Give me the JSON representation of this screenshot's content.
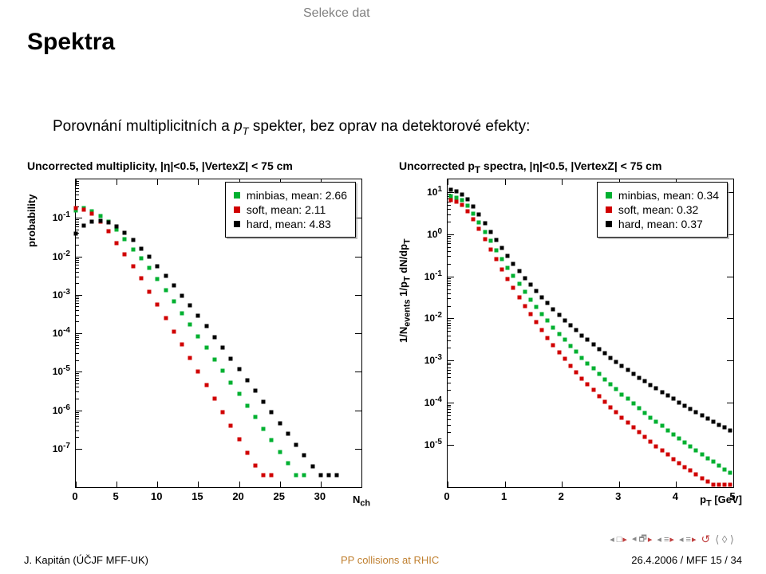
{
  "section": "Selekce dat",
  "title": "Spektra",
  "subtitle_pre": "Porovnání multiplicitních a ",
  "subtitle_pt": "p",
  "subtitle_ptT": "T",
  "subtitle_post": " spekter, bez oprav na detektorové efekty:",
  "footer": {
    "left": "J. Kapitán (ÚČJF MFF-UK)",
    "mid": "PP collisions at RHIC",
    "right": "26.4.2006 / MFF       15 / 34"
  },
  "chart_left": {
    "title": "Uncorrected multiplicity, |η|<0.5, |VertexZ| < 75 cm",
    "ylabel": "probability",
    "xlabel_html": "N<sub>ch</sub>",
    "xlim": [
      0,
      35
    ],
    "xticks": [
      0,
      5,
      10,
      15,
      20,
      25,
      30
    ],
    "ylim_log": [
      -8,
      0
    ],
    "yticks_exp": [
      -7,
      -6,
      -5,
      -4,
      -3,
      -2,
      -1
    ],
    "legend": [
      {
        "label": "minbias, mean: 2.66",
        "color": "#00b030"
      },
      {
        "label": "soft, mean: 2.11",
        "color": "#d00000"
      },
      {
        "label": "hard, mean: 4.83",
        "color": "#000000"
      }
    ],
    "series": {
      "minbias": {
        "color": "#00b030",
        "x": [
          0,
          1,
          2,
          3,
          4,
          5,
          6,
          7,
          8,
          9,
          10,
          11,
          12,
          13,
          14,
          15,
          16,
          17,
          18,
          19,
          20,
          21,
          22,
          23,
          24,
          25,
          26,
          27,
          28
        ],
        "logy": [
          -0.8,
          -0.75,
          -0.82,
          -0.95,
          -1.1,
          -1.3,
          -1.55,
          -1.82,
          -2.05,
          -2.3,
          -2.6,
          -2.88,
          -3.18,
          -3.48,
          -3.78,
          -4.08,
          -4.38,
          -4.68,
          -4.98,
          -5.28,
          -5.58,
          -5.88,
          -6.18,
          -6.48,
          -6.78,
          -7.08,
          -7.38,
          -7.68,
          -7.68
        ]
      },
      "soft": {
        "color": "#d00000",
        "x": [
          0,
          1,
          2,
          3,
          4,
          5,
          6,
          7,
          8,
          9,
          10,
          11,
          12,
          13,
          14,
          15,
          16,
          17,
          18,
          19,
          20,
          21,
          22,
          23,
          24
        ],
        "logy": [
          -0.75,
          -0.78,
          -0.9,
          -1.1,
          -1.35,
          -1.65,
          -1.95,
          -2.25,
          -2.58,
          -2.92,
          -3.25,
          -3.6,
          -3.95,
          -4.3,
          -4.65,
          -5.0,
          -5.35,
          -5.7,
          -6.05,
          -6.4,
          -6.75,
          -7.1,
          -7.45,
          -7.68,
          -7.68
        ]
      },
      "hard": {
        "color": "#000000",
        "x": [
          0,
          1,
          2,
          3,
          4,
          5,
          6,
          7,
          8,
          9,
          10,
          11,
          12,
          13,
          14,
          15,
          16,
          17,
          18,
          19,
          20,
          21,
          22,
          23,
          24,
          25,
          26,
          27,
          28,
          29,
          30,
          31,
          32
        ],
        "logy": [
          -1.4,
          -1.2,
          -1.1,
          -1.08,
          -1.12,
          -1.22,
          -1.38,
          -1.58,
          -1.8,
          -2.02,
          -2.25,
          -2.5,
          -2.76,
          -3.02,
          -3.28,
          -3.55,
          -3.82,
          -4.1,
          -4.38,
          -4.66,
          -4.94,
          -5.22,
          -5.5,
          -5.78,
          -6.06,
          -6.34,
          -6.62,
          -6.9,
          -7.18,
          -7.46,
          -7.68,
          -7.68,
          -7.68
        ]
      }
    }
  },
  "chart_right": {
    "title_html": "Uncorrected p<sub>T</sub> spectra, |η|<0.5, |VertexZ| < 75 cm",
    "ylabel_html": "1/N<sub>events</sub> 1/p<sub>T</sub> dN/dp<sub>T</sub>",
    "xlabel_html": "p<sub>T</sub> [GeV]",
    "xlim": [
      0,
      5
    ],
    "xticks": [
      0,
      1,
      2,
      3,
      4,
      5
    ],
    "ylim_log": [
      -6,
      1.3
    ],
    "yticks_exp": [
      -5,
      -4,
      -3,
      -2,
      -1,
      0,
      1
    ],
    "legend": [
      {
        "label": "minbias, mean: 0.34",
        "color": "#00b030"
      },
      {
        "label": "soft, mean: 0.32",
        "color": "#d00000"
      },
      {
        "label": "hard, mean: 0.37",
        "color": "#000000"
      }
    ],
    "series": {
      "hard": {
        "color": "#000000",
        "x_start": 0.05,
        "x_step": 0.1,
        "n": 50,
        "logy": [
          1.05,
          1.02,
          0.95,
          0.82,
          0.65,
          0.46,
          0.26,
          0.06,
          -0.14,
          -0.33,
          -0.52,
          -0.7,
          -0.87,
          -1.04,
          -1.2,
          -1.35,
          -1.5,
          -1.64,
          -1.78,
          -1.91,
          -2.04,
          -2.16,
          -2.28,
          -2.4,
          -2.51,
          -2.62,
          -2.73,
          -2.83,
          -2.93,
          -3.03,
          -3.13,
          -3.22,
          -3.31,
          -3.4,
          -3.49,
          -3.58,
          -3.66,
          -3.75,
          -3.83,
          -3.91,
          -3.99,
          -4.07,
          -4.15,
          -4.22,
          -4.3,
          -4.37,
          -4.45,
          -4.52,
          -4.59,
          -4.66
        ]
      },
      "minbias": {
        "color": "#00b030",
        "x_start": 0.05,
        "x_step": 0.1,
        "n": 50,
        "logy": [
          0.9,
          0.87,
          0.8,
          0.67,
          0.49,
          0.28,
          0.06,
          -0.16,
          -0.38,
          -0.59,
          -0.79,
          -0.99,
          -1.18,
          -1.37,
          -1.55,
          -1.72,
          -1.89,
          -2.05,
          -2.21,
          -2.36,
          -2.51,
          -2.65,
          -2.79,
          -2.93,
          -3.06,
          -3.19,
          -3.32,
          -3.44,
          -3.56,
          -3.68,
          -3.8,
          -3.91,
          -4.02,
          -4.13,
          -4.24,
          -4.35,
          -4.45,
          -4.55,
          -4.65,
          -4.75,
          -4.85,
          -4.95,
          -5.04,
          -5.13,
          -5.22,
          -5.31,
          -5.4,
          -5.49,
          -5.58,
          -5.66
        ]
      },
      "soft": {
        "color": "#d00000",
        "x_start": 0.05,
        "x_step": 0.1,
        "n": 50,
        "logy": [
          0.8,
          0.77,
          0.69,
          0.55,
          0.35,
          0.12,
          -0.12,
          -0.36,
          -0.6,
          -0.83,
          -1.06,
          -1.28,
          -1.49,
          -1.7,
          -1.9,
          -2.09,
          -2.28,
          -2.46,
          -2.63,
          -2.8,
          -2.96,
          -3.12,
          -3.27,
          -3.42,
          -3.56,
          -3.7,
          -3.84,
          -3.97,
          -4.1,
          -4.23,
          -4.35,
          -4.47,
          -4.59,
          -4.7,
          -4.81,
          -4.92,
          -5.03,
          -5.13,
          -5.23,
          -5.33,
          -5.43,
          -5.52,
          -5.61,
          -5.7,
          -5.79,
          -5.87,
          -5.95,
          -5.95,
          -5.95,
          -5.95
        ]
      }
    }
  }
}
